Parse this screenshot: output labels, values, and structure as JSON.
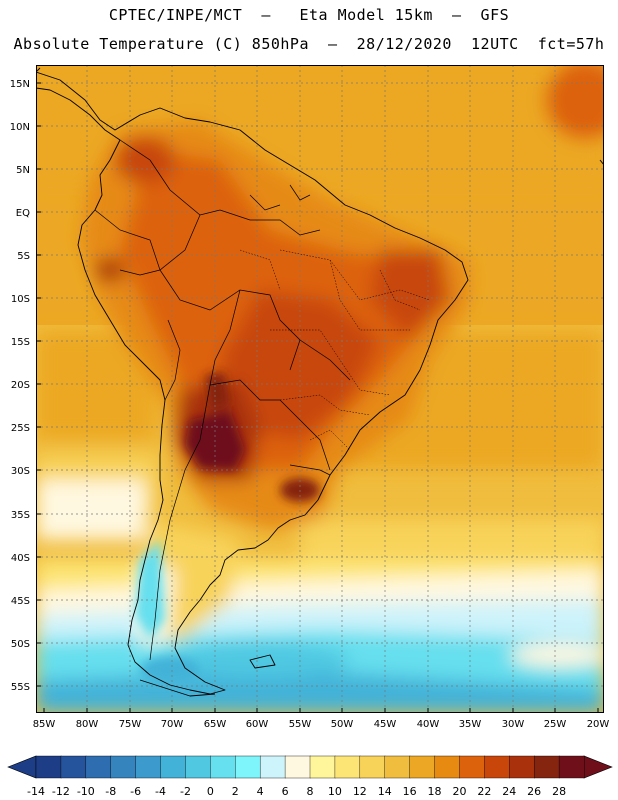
{
  "header": {
    "title_line1": "CPTEC/INPE/MCT  –   Eta Model 15km  –  GFS",
    "title_line2": "Absolute Temperature (C) 850hPa  –  28/12/2020  12UTC  fct=57h"
  },
  "map": {
    "lat_labels": [
      "15N",
      "10N",
      "5N",
      "EQ",
      "5S",
      "10S",
      "15S",
      "20S",
      "25S",
      "30S",
      "35S",
      "40S",
      "45S",
      "50S",
      "55S"
    ],
    "lon_labels": [
      "85W",
      "80W",
      "75W",
      "70W",
      "65W",
      "60W",
      "55W",
      "50W",
      "45W",
      "40W",
      "35W",
      "30W",
      "25W",
      "20W"
    ]
  },
  "colorbar": {
    "labels": [
      "-14",
      "-12",
      "-10",
      "-8",
      "-6",
      "-4",
      "-2",
      "0",
      "2",
      "4",
      "6",
      "8",
      "10",
      "12",
      "14",
      "16",
      "18",
      "20",
      "22",
      "24",
      "26",
      "28"
    ],
    "colors": [
      "#1d3d87",
      "#25549c",
      "#2e6db0",
      "#3584bd",
      "#3c9bcc",
      "#43b2d8",
      "#50c8e2",
      "#66dfee",
      "#7df5fb",
      "#cdf3fb",
      "#fff8e0",
      "#fff59a",
      "#fde575",
      "#f8d35a",
      "#f0bd3e",
      "#eca824",
      "#e68a12",
      "#dd620c",
      "#c8460a",
      "#a9320d",
      "#85240f",
      "#6e0f1a"
    ]
  }
}
